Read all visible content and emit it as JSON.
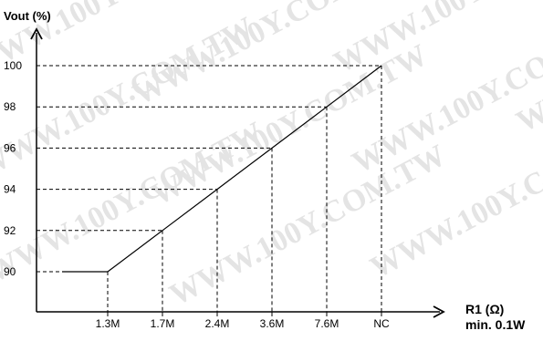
{
  "watermark": "WWW.100Y.COM.TW",
  "chart_data": {
    "type": "line",
    "ylabel": "Vout (%)",
    "xlabel": "R1 (Ω)",
    "xlabel_note": "min. 0.1W",
    "categories": [
      "1.3M",
      "1.7M",
      "2.4M",
      "3.6M",
      "7.6M",
      "NC"
    ],
    "yticks": [
      90,
      92,
      94,
      96,
      98,
      100
    ],
    "ylim": [
      88.8,
      101.7
    ],
    "series": [
      {
        "values": [
          90,
          92,
          94,
          96,
          98,
          100
        ]
      }
    ],
    "grid": "dashed guide lines to each point",
    "baseline_segment": {
      "from_value": 90,
      "to_category": "1.3M"
    }
  }
}
